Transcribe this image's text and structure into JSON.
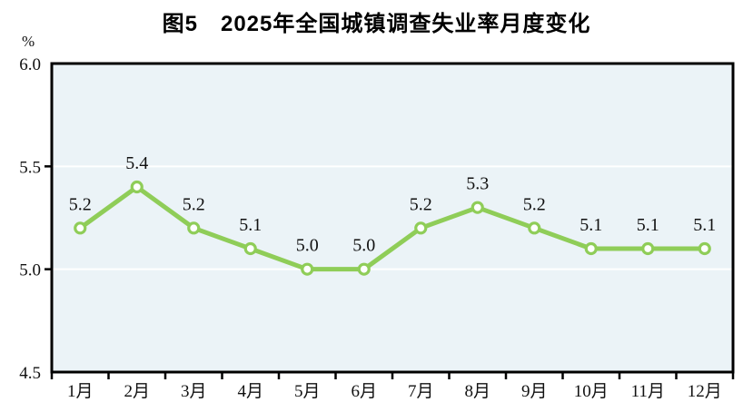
{
  "title": "图5　2025年全国城镇调查失业率月度变化",
  "chart_data": {
    "type": "line",
    "title": "图5　2025年全国城镇调查失业率月度变化",
    "unit": "%",
    "categories": [
      "1月",
      "2月",
      "3月",
      "4月",
      "5月",
      "6月",
      "7月",
      "8月",
      "9月",
      "10月",
      "11月",
      "12月"
    ],
    "values": [
      5.2,
      5.4,
      5.2,
      5.1,
      5.0,
      5.0,
      5.2,
      5.3,
      5.2,
      5.1,
      5.1,
      5.1
    ],
    "data_labels": [
      "5.2",
      "5.4",
      "5.2",
      "5.1",
      "5.0",
      "5.0",
      "5.2",
      "5.3",
      "5.2",
      "5.1",
      "5.1",
      "5.1"
    ],
    "xlabel": "",
    "ylabel": "%",
    "ylim": [
      4.5,
      6.0
    ],
    "yticks": [
      6.0,
      5.5,
      5.0,
      4.5
    ],
    "gridlines": [
      5.5,
      5.0
    ],
    "legend_position": "none",
    "styles": {
      "line_color": "#8fcd58",
      "marker": "open-circle",
      "marker_fill": "#ffffff",
      "plot_bg": "#ebf3f7",
      "gridline_color": "#ffffff",
      "axis_color": "#000000",
      "label_color": "#111111"
    }
  }
}
